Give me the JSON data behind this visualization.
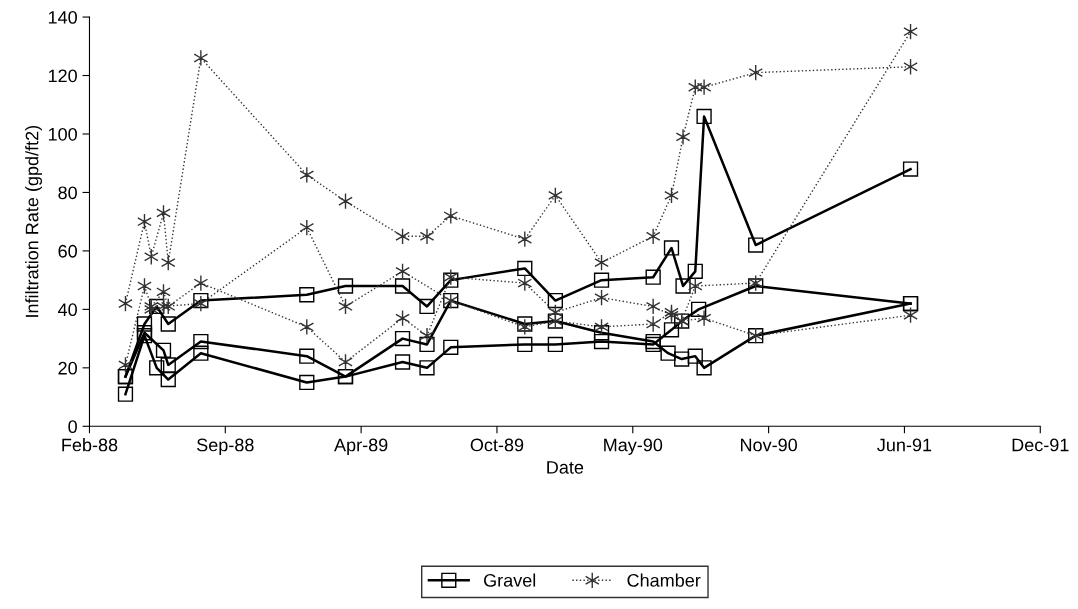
{
  "chart_data": {
    "type": "line",
    "xlabel": "Date",
    "ylabel": "Infiltration Rate (gpd/ft2)",
    "xlim": [
      "1988-02-28",
      "1991-12-29"
    ],
    "ylim": [
      0,
      140
    ],
    "xticks": [
      {
        "value": "1988-02-28",
        "label": "Feb-88"
      },
      {
        "value": "1988-09-15",
        "label": "Sep-88"
      },
      {
        "value": "1989-04-03",
        "label": "Apr-89"
      },
      {
        "value": "1989-10-20",
        "label": "Oct-89"
      },
      {
        "value": "1990-05-08",
        "label": "May-90"
      },
      {
        "value": "1990-11-24",
        "label": "Nov-90"
      },
      {
        "value": "1991-06-12",
        "label": "Jun-91"
      },
      {
        "value": "1991-12-29",
        "label": "Dec-91"
      }
    ],
    "yticks": [
      0,
      20,
      40,
      60,
      80,
      100,
      120,
      140
    ],
    "grid": false,
    "legend": "bottom",
    "series": [
      {
        "name": "Gravel",
        "color": "#000000",
        "marker": "square",
        "line_style": "solid",
        "x": [
          "1988-04-21",
          "1988-05-19",
          "1988-06-06",
          "1988-06-23",
          "1988-08-10",
          "1989-01-13",
          "1989-03-11",
          "1989-06-03",
          "1989-07-09",
          "1989-08-13",
          "1989-11-30",
          "1990-01-14",
          "1990-03-23",
          "1990-06-07",
          "1990-07-04",
          "1990-07-21",
          "1990-08-08",
          "1990-08-21",
          "1990-11-05",
          "1991-06-21"
        ],
        "values": [
          17,
          35,
          41,
          35,
          43,
          45,
          48,
          48,
          41,
          50,
          54,
          43,
          50,
          51,
          61,
          48,
          53,
          106,
          62,
          88
        ]
      },
      {
        "color": "#000000",
        "marker": "square",
        "line_style": "solid",
        "x": [
          "1988-04-21",
          "1988-05-19",
          "1988-06-16",
          "1988-06-23",
          "1988-08-10",
          "1989-01-13",
          "1989-03-11",
          "1989-06-03",
          "1989-07-09",
          "1989-08-13",
          "1989-11-30",
          "1990-01-14",
          "1990-03-23",
          "1990-06-07",
          "1990-06-29",
          "1990-07-19",
          "1990-08-08",
          "1990-08-21",
          "1990-11-05",
          "1991-06-21"
        ],
        "values": [
          17,
          32,
          26,
          21,
          29,
          24,
          17,
          30,
          28,
          43,
          35,
          36,
          32,
          29,
          25,
          23,
          24,
          20,
          31,
          42
        ]
      },
      {
        "color": "#000000",
        "marker": "square",
        "line_style": "solid",
        "x": [
          "1988-04-21",
          "1988-05-19",
          "1988-06-06",
          "1988-06-23",
          "1988-08-10",
          "1989-01-13",
          "1989-03-11",
          "1989-06-03",
          "1989-07-09",
          "1989-08-13",
          "1989-11-30",
          "1990-01-14",
          "1990-03-23",
          "1990-06-07",
          "1990-07-04",
          "1990-07-19",
          "1990-08-13",
          "1990-11-05",
          "1991-06-21"
        ],
        "values": [
          11,
          31,
          20,
          16,
          25,
          15,
          17,
          22,
          20,
          27,
          28,
          28,
          29,
          28,
          33,
          36,
          40,
          48,
          42
        ]
      },
      {
        "name": "Chamber",
        "color": "#333333",
        "marker": "cross",
        "line_style": "dotted",
        "x": [
          "1988-04-21",
          "1988-05-19",
          "1988-05-29",
          "1988-06-16",
          "1988-06-23",
          "1988-08-10",
          "1989-01-13",
          "1989-03-11",
          "1989-06-03",
          "1989-07-09",
          "1989-08-13",
          "1989-11-30",
          "1990-01-14",
          "1990-03-23",
          "1990-06-07",
          "1990-07-04",
          "1990-07-21",
          "1990-08-08",
          "1990-08-21",
          "1990-11-05",
          "1991-06-21"
        ],
        "values": [
          42,
          70,
          58,
          73,
          56,
          126,
          86,
          77,
          65,
          65,
          72,
          64,
          79,
          56,
          65,
          79,
          99,
          116,
          116,
          121,
          123
        ]
      },
      {
        "color": "#333333",
        "marker": "cross",
        "line_style": "dotted",
        "x": [
          "1988-04-21",
          "1988-05-19",
          "1988-05-29",
          "1988-06-16",
          "1988-06-23",
          "1988-08-10",
          "1989-01-13",
          "1989-03-11",
          "1989-06-03",
          "1989-07-09",
          "1989-08-13",
          "1989-11-30",
          "1990-01-14",
          "1990-03-23",
          "1990-06-07",
          "1990-07-04",
          "1990-07-19",
          "1990-08-08",
          "1990-11-05",
          "1991-06-21"
        ],
        "values": [
          21,
          48,
          41,
          46,
          41,
          49,
          34,
          22,
          37,
          31,
          51,
          49,
          39,
          44,
          41,
          38,
          36,
          48,
          49,
          135
        ]
      },
      {
        "color": "#333333",
        "marker": "cross",
        "line_style": "dotted",
        "x": [
          "1988-05-29",
          "1988-06-16",
          "1988-08-10",
          "1989-01-13",
          "1989-03-11",
          "1989-06-03",
          "1989-08-13",
          "1989-11-30",
          "1990-01-14",
          "1990-03-23",
          "1990-06-07",
          "1990-07-04",
          "1990-07-19",
          "1990-08-21",
          "1990-11-05",
          "1991-06-21"
        ],
        "values": [
          40,
          41,
          42,
          68,
          41,
          53,
          43,
          34,
          36,
          34,
          35,
          39,
          36,
          37,
          31,
          38
        ]
      }
    ]
  }
}
